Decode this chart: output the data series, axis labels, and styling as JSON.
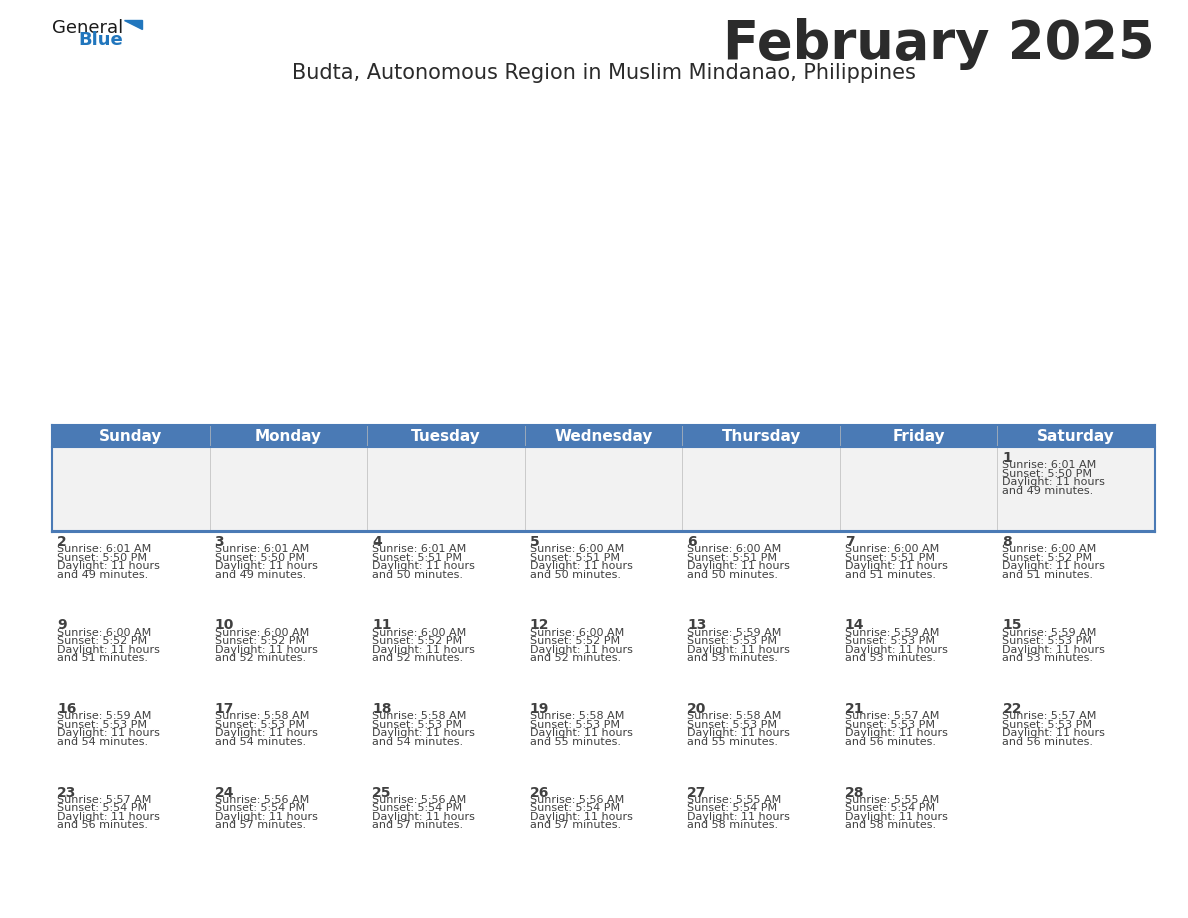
{
  "title": "February 2025",
  "subtitle": "Budta, Autonomous Region in Muslim Mindanao, Philippines",
  "header_bg_color": "#4a7ab5",
  "header_text_color": "#ffffff",
  "days_of_week": [
    "Sunday",
    "Monday",
    "Tuesday",
    "Wednesday",
    "Thursday",
    "Friday",
    "Saturday"
  ],
  "row_bg_even": "#f2f2f2",
  "row_bg_odd": "#ffffff",
  "divider_color": "#4a7ab5",
  "text_color": "#404040",
  "date_num_color": "#404040",
  "calendar_data": [
    [
      null,
      null,
      null,
      null,
      null,
      null,
      {
        "day": "1",
        "sunrise": "6:01 AM",
        "sunset": "5:50 PM",
        "daylight_h": "11 hours",
        "daylight_m": "and 49 minutes."
      }
    ],
    [
      {
        "day": "2",
        "sunrise": "6:01 AM",
        "sunset": "5:50 PM",
        "daylight_h": "11 hours",
        "daylight_m": "and 49 minutes."
      },
      {
        "day": "3",
        "sunrise": "6:01 AM",
        "sunset": "5:50 PM",
        "daylight_h": "11 hours",
        "daylight_m": "and 49 minutes."
      },
      {
        "day": "4",
        "sunrise": "6:01 AM",
        "sunset": "5:51 PM",
        "daylight_h": "11 hours",
        "daylight_m": "and 50 minutes."
      },
      {
        "day": "5",
        "sunrise": "6:00 AM",
        "sunset": "5:51 PM",
        "daylight_h": "11 hours",
        "daylight_m": "and 50 minutes."
      },
      {
        "day": "6",
        "sunrise": "6:00 AM",
        "sunset": "5:51 PM",
        "daylight_h": "11 hours",
        "daylight_m": "and 50 minutes."
      },
      {
        "day": "7",
        "sunrise": "6:00 AM",
        "sunset": "5:51 PM",
        "daylight_h": "11 hours",
        "daylight_m": "and 51 minutes."
      },
      {
        "day": "8",
        "sunrise": "6:00 AM",
        "sunset": "5:52 PM",
        "daylight_h": "11 hours",
        "daylight_m": "and 51 minutes."
      }
    ],
    [
      {
        "day": "9",
        "sunrise": "6:00 AM",
        "sunset": "5:52 PM",
        "daylight_h": "11 hours",
        "daylight_m": "and 51 minutes."
      },
      {
        "day": "10",
        "sunrise": "6:00 AM",
        "sunset": "5:52 PM",
        "daylight_h": "11 hours",
        "daylight_m": "and 52 minutes."
      },
      {
        "day": "11",
        "sunrise": "6:00 AM",
        "sunset": "5:52 PM",
        "daylight_h": "11 hours",
        "daylight_m": "and 52 minutes."
      },
      {
        "day": "12",
        "sunrise": "6:00 AM",
        "sunset": "5:52 PM",
        "daylight_h": "11 hours",
        "daylight_m": "and 52 minutes."
      },
      {
        "day": "13",
        "sunrise": "5:59 AM",
        "sunset": "5:53 PM",
        "daylight_h": "11 hours",
        "daylight_m": "and 53 minutes."
      },
      {
        "day": "14",
        "sunrise": "5:59 AM",
        "sunset": "5:53 PM",
        "daylight_h": "11 hours",
        "daylight_m": "and 53 minutes."
      },
      {
        "day": "15",
        "sunrise": "5:59 AM",
        "sunset": "5:53 PM",
        "daylight_h": "11 hours",
        "daylight_m": "and 53 minutes."
      }
    ],
    [
      {
        "day": "16",
        "sunrise": "5:59 AM",
        "sunset": "5:53 PM",
        "daylight_h": "11 hours",
        "daylight_m": "and 54 minutes."
      },
      {
        "day": "17",
        "sunrise": "5:58 AM",
        "sunset": "5:53 PM",
        "daylight_h": "11 hours",
        "daylight_m": "and 54 minutes."
      },
      {
        "day": "18",
        "sunrise": "5:58 AM",
        "sunset": "5:53 PM",
        "daylight_h": "11 hours",
        "daylight_m": "and 54 minutes."
      },
      {
        "day": "19",
        "sunrise": "5:58 AM",
        "sunset": "5:53 PM",
        "daylight_h": "11 hours",
        "daylight_m": "and 55 minutes."
      },
      {
        "day": "20",
        "sunrise": "5:58 AM",
        "sunset": "5:53 PM",
        "daylight_h": "11 hours",
        "daylight_m": "and 55 minutes."
      },
      {
        "day": "21",
        "sunrise": "5:57 AM",
        "sunset": "5:53 PM",
        "daylight_h": "11 hours",
        "daylight_m": "and 56 minutes."
      },
      {
        "day": "22",
        "sunrise": "5:57 AM",
        "sunset": "5:53 PM",
        "daylight_h": "11 hours",
        "daylight_m": "and 56 minutes."
      }
    ],
    [
      {
        "day": "23",
        "sunrise": "5:57 AM",
        "sunset": "5:54 PM",
        "daylight_h": "11 hours",
        "daylight_m": "and 56 minutes."
      },
      {
        "day": "24",
        "sunrise": "5:56 AM",
        "sunset": "5:54 PM",
        "daylight_h": "11 hours",
        "daylight_m": "and 57 minutes."
      },
      {
        "day": "25",
        "sunrise": "5:56 AM",
        "sunset": "5:54 PM",
        "daylight_h": "11 hours",
        "daylight_m": "and 57 minutes."
      },
      {
        "day": "26",
        "sunrise": "5:56 AM",
        "sunset": "5:54 PM",
        "daylight_h": "11 hours",
        "daylight_m": "and 57 minutes."
      },
      {
        "day": "27",
        "sunrise": "5:55 AM",
        "sunset": "5:54 PM",
        "daylight_h": "11 hours",
        "daylight_m": "and 58 minutes."
      },
      {
        "day": "28",
        "sunrise": "5:55 AM",
        "sunset": "5:54 PM",
        "daylight_h": "11 hours",
        "daylight_m": "and 58 minutes."
      },
      null
    ]
  ],
  "logo_general_color": "#1a1a1a",
  "logo_blue_color": "#2176bd",
  "logo_triangle_color": "#2176bd",
  "title_fontsize": 38,
  "subtitle_fontsize": 15,
  "header_fontsize": 11,
  "day_num_fontsize": 10,
  "cell_text_fontsize": 8
}
